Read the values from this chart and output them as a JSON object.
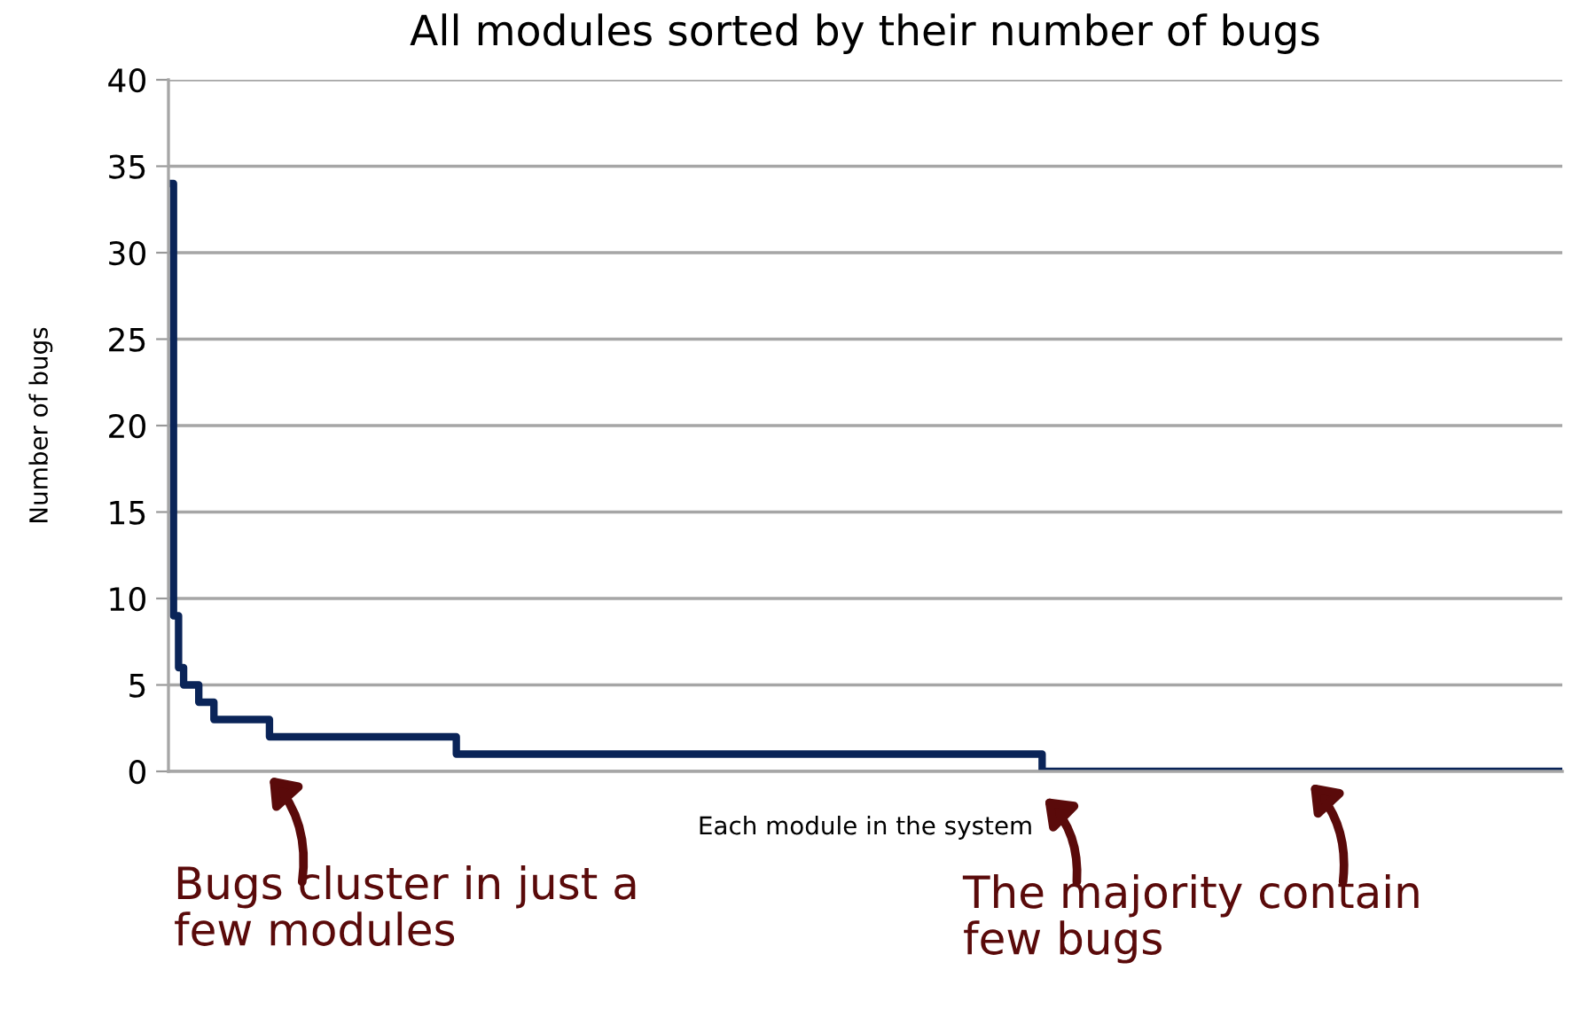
{
  "chart_data": {
    "type": "step",
    "title": "All modules sorted by their number of bugs",
    "xlabel": "Each module in the system",
    "ylabel": "Number of bugs",
    "annotations": [
      "Bugs cluster in just a\nfew modules",
      "The majority contain\nfew bugs"
    ],
    "categories": [
      null,
      null,
      null,
      null,
      null,
      null,
      null,
      null,
      null,
      null,
      null,
      null,
      null,
      null,
      null,
      null,
      null,
      null,
      null,
      null,
      null,
      null,
      null,
      null,
      null,
      null,
      null,
      null,
      null,
      null,
      null,
      null,
      null,
      null,
      null,
      null,
      null,
      null,
      null,
      null,
      null,
      null,
      null,
      null,
      null,
      null,
      null,
      null,
      null,
      null,
      null,
      null,
      null,
      null,
      null,
      null,
      null,
      null,
      null,
      null,
      null,
      null,
      null,
      null,
      null,
      null,
      null,
      null,
      null,
      null,
      null,
      null,
      null,
      null,
      null,
      null,
      null,
      null,
      null,
      null,
      null,
      null,
      null,
      null,
      null,
      null,
      null,
      null,
      null,
      null,
      null,
      null,
      null,
      null,
      null,
      null,
      null,
      null,
      null,
      null,
      null,
      null,
      null,
      null,
      null,
      null,
      null,
      null,
      null,
      null,
      null,
      null,
      null,
      null,
      null,
      null,
      null,
      null,
      null,
      null,
      null,
      null,
      null,
      null,
      null,
      null,
      null,
      null,
      null,
      null,
      null,
      null,
      null,
      null,
      null,
      null,
      null,
      null,
      null,
      null,
      null,
      null,
      null,
      null,
      null,
      null,
      null,
      null,
      null,
      null,
      null,
      null,
      null,
      null,
      null,
      null,
      null,
      null,
      null,
      null,
      null,
      null,
      null,
      null,
      null,
      null,
      null,
      null,
      null,
      null,
      null,
      null,
      null,
      null,
      null,
      null,
      null,
      null,
      null,
      null,
      null,
      null,
      null,
      null,
      null,
      null,
      null,
      null,
      null,
      null,
      null,
      null,
      null,
      null,
      null,
      null,
      null,
      null,
      null,
      null,
      null,
      null,
      null,
      null,
      null,
      null,
      null,
      null,
      null,
      null,
      null,
      null,
      null,
      null,
      null,
      null,
      null,
      null,
      null,
      null,
      null,
      null,
      null,
      null,
      null,
      null,
      null,
      null,
      null,
      null,
      null,
      null,
      null,
      null,
      null,
      null,
      null,
      null,
      null,
      null,
      null,
      null,
      null,
      null,
      null,
      null,
      null,
      null,
      null,
      null,
      null,
      null,
      null,
      null,
      null,
      null,
      null,
      null,
      null,
      null,
      null,
      null,
      null,
      null,
      null,
      null,
      null,
      null,
      null,
      null,
      null,
      null,
      null,
      null,
      null,
      null,
      null
    ],
    "values": [
      34,
      9,
      6,
      5,
      5,
      5,
      4,
      4,
      4,
      3,
      3,
      3,
      3,
      3,
      3,
      3,
      3,
      3,
      3,
      3,
      2,
      2,
      2,
      2,
      2,
      2,
      2,
      2,
      2,
      2,
      2,
      2,
      2,
      2,
      2,
      2,
      2,
      2,
      2,
      2,
      2,
      2,
      2,
      2,
      2,
      2,
      2,
      2,
      2,
      2,
      2,
      2,
      2,
      2,
      2,
      2,
      2,
      1,
      1,
      1,
      1,
      1,
      1,
      1,
      1,
      1,
      1,
      1,
      1,
      1,
      1,
      1,
      1,
      1,
      1,
      1,
      1,
      1,
      1,
      1,
      1,
      1,
      1,
      1,
      1,
      1,
      1,
      1,
      1,
      1,
      1,
      1,
      1,
      1,
      1,
      1,
      1,
      1,
      1,
      1,
      1,
      1,
      1,
      1,
      1,
      1,
      1,
      1,
      1,
      1,
      1,
      1,
      1,
      1,
      1,
      1,
      1,
      1,
      1,
      1,
      1,
      1,
      1,
      1,
      1,
      1,
      1,
      1,
      1,
      1,
      1,
      1,
      1,
      1,
      1,
      1,
      1,
      1,
      1,
      1,
      1,
      1,
      1,
      1,
      1,
      1,
      1,
      1,
      1,
      1,
      1,
      1,
      1,
      1,
      1,
      1,
      1,
      1,
      1,
      1,
      1,
      1,
      1,
      1,
      1,
      1,
      1,
      1,
      1,
      1,
      1,
      1,
      1,
      0,
      0,
      0,
      0,
      0,
      0,
      0,
      0,
      0,
      0,
      0,
      0,
      0,
      0,
      0,
      0,
      0,
      0,
      0,
      0,
      0,
      0,
      0,
      0,
      0,
      0,
      0,
      0,
      0,
      0,
      0,
      0,
      0,
      0,
      0,
      0,
      0,
      0,
      0,
      0,
      0,
      0,
      0,
      0,
      0,
      0,
      0,
      0,
      0,
      0,
      0,
      0,
      0,
      0,
      0,
      0,
      0,
      0,
      0,
      0,
      0,
      0,
      0,
      0,
      0,
      0,
      0,
      0,
      0,
      0,
      0,
      0,
      0,
      0,
      0,
      0,
      0,
      0,
      0,
      0,
      0,
      0,
      0,
      0,
      0,
      0,
      0,
      0,
      0,
      0,
      0,
      0,
      0,
      0,
      0,
      0,
      0,
      0,
      0,
      0,
      0,
      0,
      0,
      0
    ],
    "color": "#0a2458",
    "ylim": [
      0,
      40
    ],
    "yticks": [
      0,
      5,
      10,
      15,
      20,
      25,
      30,
      35,
      40
    ],
    "grid": "y",
    "tick_labels": "y"
  }
}
